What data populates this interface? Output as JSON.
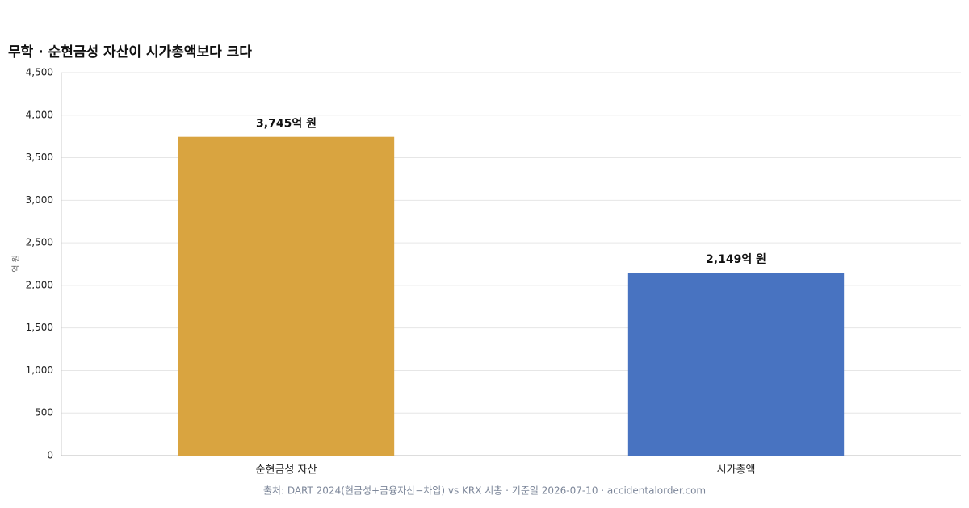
{
  "chart_data": {
    "type": "bar",
    "title": "무학 · 순현금성 자산이 시가총액보다 크다",
    "y_label": "억 원",
    "categories": [
      "순현금성 자산",
      "시가총액"
    ],
    "values": [
      3745,
      2149
    ],
    "value_labels": [
      "3,745억 원",
      "2,149억 원"
    ],
    "colors": [
      "#d9a440",
      "#4873c1"
    ],
    "ylim": [
      0,
      4500
    ],
    "yticks": [
      0,
      500,
      {
        "value": 1000,
        "label": "1,000"
      },
      {
        "value": 1500,
        "label": "1,500"
      },
      {
        "value": 2000,
        "label": "2,000"
      },
      {
        "value": 2500,
        "label": "2,500"
      },
      {
        "value": 3000,
        "label": "3,000"
      },
      {
        "value": 3500,
        "label": "3,500"
      },
      {
        "value": 4000,
        "label": "4,000"
      },
      {
        "value": 4500,
        "label": "4,500"
      }
    ],
    "grid": true,
    "source": "출처: DART 2024(현금성+금융자산−차입) vs KRX 시총 · 기준일 2026-07-10 · accidentalorder.com"
  }
}
